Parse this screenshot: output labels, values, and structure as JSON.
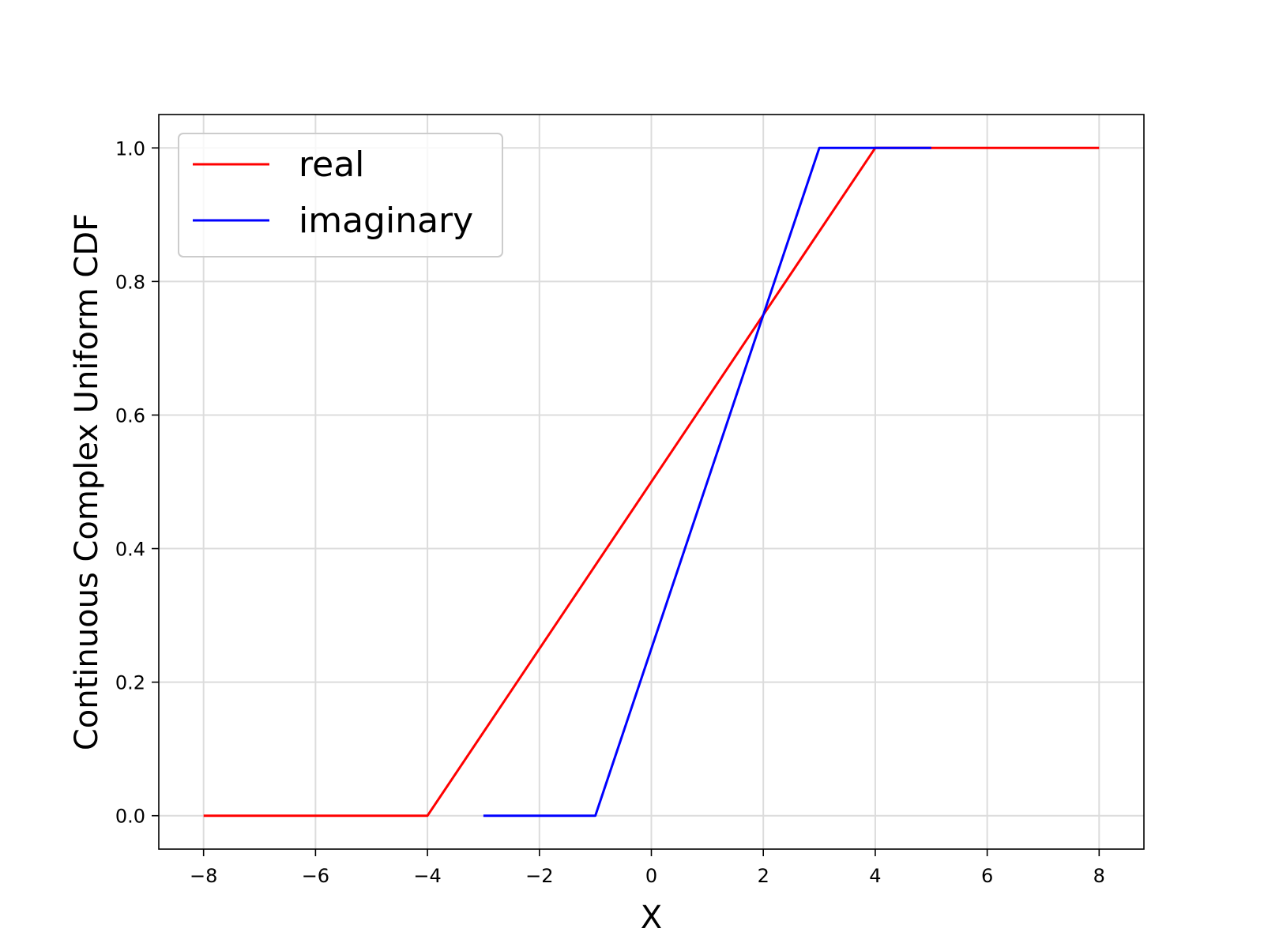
{
  "chart_data": {
    "type": "line",
    "title": "",
    "xlabel": "X",
    "ylabel": "Continuous Complex Uniform CDF",
    "xlim": [
      -8.8,
      8.8
    ],
    "ylim": [
      -0.05,
      1.05
    ],
    "xticks": [
      -8,
      -6,
      -4,
      -2,
      0,
      2,
      4,
      6,
      8
    ],
    "xtick_labels": [
      "−8",
      "−6",
      "−4",
      "−2",
      "0",
      "2",
      "4",
      "6",
      "8"
    ],
    "yticks": [
      0.0,
      0.2,
      0.4,
      0.6,
      0.8,
      1.0
    ],
    "ytick_labels": [
      "0.0",
      "0.2",
      "0.4",
      "0.6",
      "0.8",
      "1.0"
    ],
    "grid": true,
    "legend_position": "top-left",
    "series": [
      {
        "name": "real",
        "color": "#ff0000",
        "x": [
          -8,
          -4,
          4,
          8
        ],
        "y": [
          0.0,
          0.0,
          1.0,
          1.0
        ]
      },
      {
        "name": "imaginary",
        "color": "#0000ff",
        "x": [
          -3,
          -1,
          3,
          5
        ],
        "y": [
          0.0,
          0.0,
          1.0,
          1.0
        ]
      }
    ]
  }
}
